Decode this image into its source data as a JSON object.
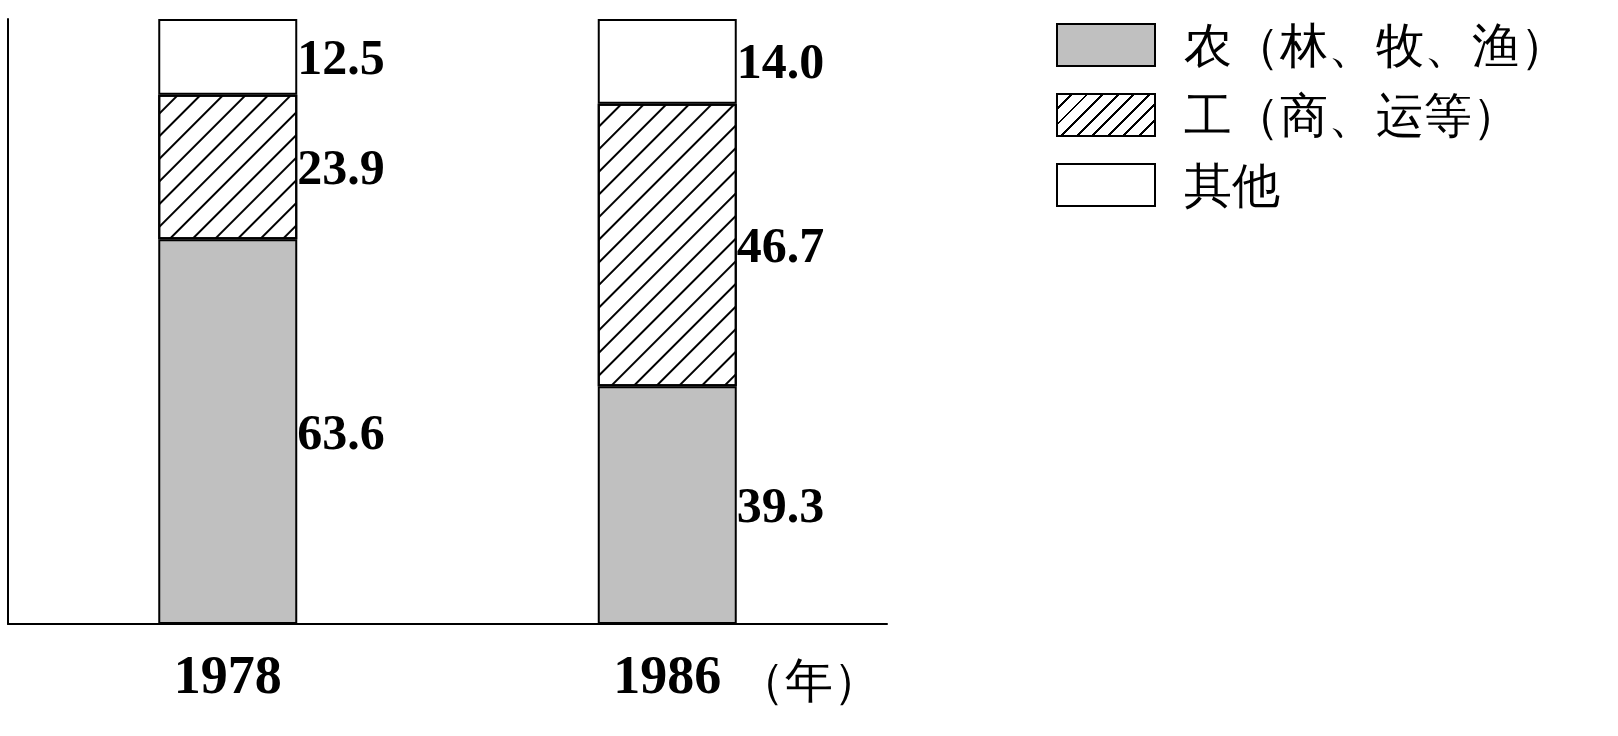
{
  "chart_data": {
    "type": "bar",
    "stacked": true,
    "categories": [
      "1978",
      "1986"
    ],
    "xlabel": "（年）",
    "series": [
      {
        "name": "农（林、牧、渔）",
        "color": "#c0c0c0",
        "values": [
          63.6,
          39.3
        ],
        "value_labels": [
          "63.6",
          "39.3"
        ]
      },
      {
        "name": "工（商、运等）",
        "color": "#ffffff",
        "values": [
          23.9,
          46.7
        ],
        "value_labels": [
          "23.9",
          "46.7"
        ]
      },
      {
        "name": "其他",
        "color": "#ffffff",
        "values": [
          12.5,
          14.0
        ],
        "value_labels": [
          "12.5",
          "14.0"
        ]
      }
    ],
    "legend": "top right",
    "grid": false
  }
}
